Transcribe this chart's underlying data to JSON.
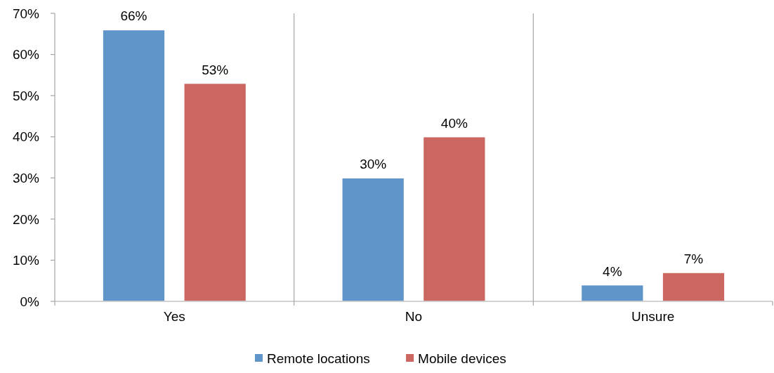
{
  "chart_data": {
    "type": "bar",
    "categories": [
      "Yes",
      "No",
      "Unsure"
    ],
    "series": [
      {
        "name": "Remote locations",
        "color": "#6095c9",
        "values": [
          66,
          30,
          4
        ],
        "value_labels": [
          "66%",
          "30%",
          "4%"
        ]
      },
      {
        "name": "Mobile devices",
        "color": "#cb6660",
        "values": [
          53,
          40,
          7
        ],
        "value_labels": [
          "53%",
          "40%",
          "7%"
        ]
      }
    ],
    "ylim": [
      0,
      70
    ],
    "yticks": [
      {
        "value": 0,
        "label": "0%"
      },
      {
        "value": 10,
        "label": "10%"
      },
      {
        "value": 20,
        "label": "20%"
      },
      {
        "value": 30,
        "label": "30%"
      },
      {
        "value": 40,
        "label": "40%"
      },
      {
        "value": 50,
        "label": "50%"
      },
      {
        "value": 60,
        "label": "60%"
      },
      {
        "value": 70,
        "label": "70%"
      }
    ],
    "grid": "x",
    "legend": "bottom"
  }
}
